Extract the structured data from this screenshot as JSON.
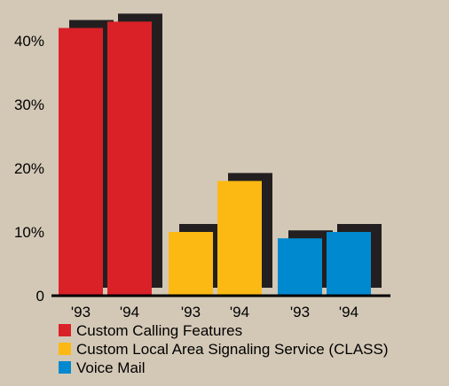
{
  "chart_data": {
    "type": "bar",
    "title": "",
    "xlabel": "",
    "ylabel": "",
    "ylim": [
      0,
      45
    ],
    "y_ticks": [
      {
        "value": 0,
        "label": "0"
      },
      {
        "value": 10,
        "label": "10%"
      },
      {
        "value": 20,
        "label": "20%"
      },
      {
        "value": 30,
        "label": "30%"
      },
      {
        "value": 40,
        "label": "40%"
      }
    ],
    "grid": false,
    "legend_placement": "bottom",
    "bar_style": "drop-shadow",
    "shadow_color": "#231F20",
    "series": [
      {
        "name": "Custom Calling Features",
        "color": "#DA2128",
        "categories": [
          "'93",
          "'94"
        ],
        "values": [
          42,
          43
        ]
      },
      {
        "name": "Custom Local Area Signaling Service (CLASS)",
        "color": "#FDB913",
        "categories": [
          "'93",
          "'94"
        ],
        "values": [
          10,
          18
        ]
      },
      {
        "name": "Voice Mail",
        "color": "#0089CF",
        "categories": [
          "'93",
          "'94"
        ],
        "values": [
          9,
          10
        ]
      }
    ]
  }
}
